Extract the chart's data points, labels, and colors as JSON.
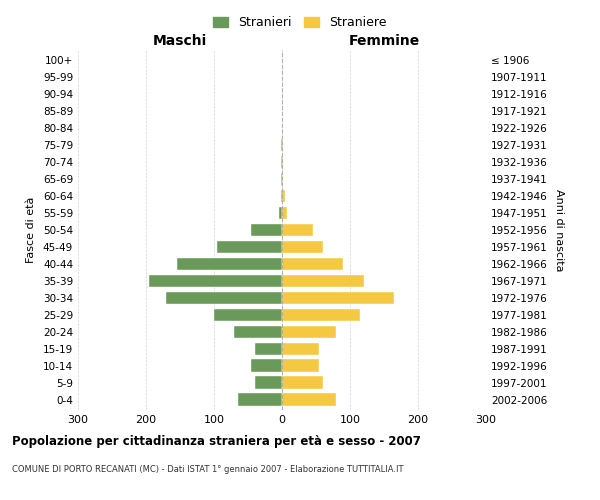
{
  "age_groups": [
    "0-4",
    "5-9",
    "10-14",
    "15-19",
    "20-24",
    "25-29",
    "30-34",
    "35-39",
    "40-44",
    "45-49",
    "50-54",
    "55-59",
    "60-64",
    "65-69",
    "70-74",
    "75-79",
    "80-84",
    "85-89",
    "90-94",
    "95-99",
    "100+"
  ],
  "birth_years": [
    "2002-2006",
    "1997-2001",
    "1992-1996",
    "1987-1991",
    "1982-1986",
    "1977-1981",
    "1972-1976",
    "1967-1971",
    "1962-1966",
    "1957-1961",
    "1952-1956",
    "1947-1951",
    "1942-1946",
    "1937-1941",
    "1932-1936",
    "1927-1931",
    "1922-1926",
    "1917-1921",
    "1912-1916",
    "1907-1911",
    "≤ 1906"
  ],
  "maschi": [
    65,
    40,
    45,
    40,
    70,
    100,
    170,
    195,
    155,
    95,
    45,
    5,
    2,
    1,
    1,
    1,
    0,
    0,
    0,
    0,
    0
  ],
  "femmine": [
    80,
    60,
    55,
    55,
    80,
    115,
    165,
    120,
    90,
    60,
    45,
    8,
    5,
    2,
    2,
    2,
    0,
    0,
    0,
    0,
    0
  ],
  "maschi_color": "#6a9a5a",
  "femmine_color": "#f5c842",
  "xlim": 300,
  "title": "Popolazione per cittadinanza straniera per età e sesso - 2007",
  "subtitle": "COMUNE DI PORTO RECANATI (MC) - Dati ISTAT 1° gennaio 2007 - Elaborazione TUTTITALIA.IT",
  "ylabel_left": "Fasce di età",
  "ylabel_right": "Anni di nascita",
  "xlabel_maschi": "Maschi",
  "xlabel_femmine": "Femmine",
  "legend_maschi": "Stranieri",
  "legend_femmine": "Straniere",
  "bg_color": "#ffffff",
  "grid_color": "#cccccc"
}
